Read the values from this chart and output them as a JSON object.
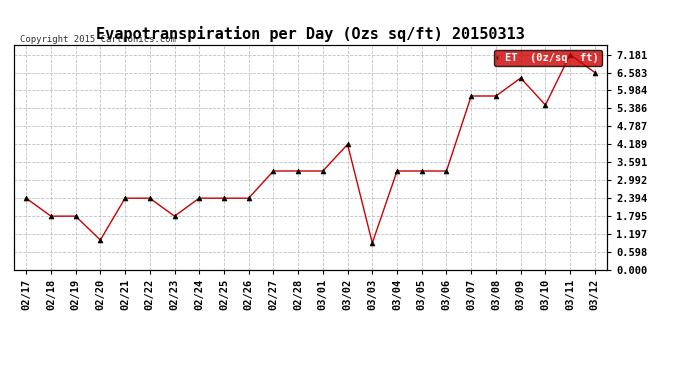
{
  "title": "Evapotranspiration per Day (Ozs sq/ft) 20150313",
  "copyright": "Copyright 2015 Cartronics.com",
  "legend_label": "ET  (0z/sq  ft)",
  "x_labels": [
    "02/17",
    "02/18",
    "02/19",
    "02/20",
    "02/21",
    "02/22",
    "02/23",
    "02/24",
    "02/25",
    "02/26",
    "02/27",
    "02/28",
    "03/01",
    "03/02",
    "03/03",
    "03/04",
    "03/05",
    "03/06",
    "03/07",
    "03/08",
    "03/09",
    "03/10",
    "03/11",
    "03/12"
  ],
  "y_values": [
    2.394,
    1.795,
    1.795,
    1.0,
    2.394,
    2.394,
    1.795,
    2.394,
    2.394,
    2.394,
    3.3,
    3.3,
    3.3,
    4.189,
    0.9,
    3.3,
    3.3,
    3.3,
    5.8,
    5.8,
    6.4,
    5.5,
    7.181,
    6.583
  ],
  "line_color": "#cc0000",
  "marker_color": "#000000",
  "marker": "^",
  "y_ticks": [
    0.0,
    0.598,
    1.197,
    1.795,
    2.394,
    2.992,
    3.591,
    4.189,
    4.787,
    5.386,
    5.984,
    6.583,
    7.181
  ],
  "ylim": [
    0.0,
    7.5
  ],
  "background_color": "#ffffff",
  "grid_color": "#bbbbbb",
  "title_fontsize": 11,
  "tick_fontsize": 7.5,
  "legend_bg": "#cc0000",
  "legend_text_color": "#ffffff"
}
